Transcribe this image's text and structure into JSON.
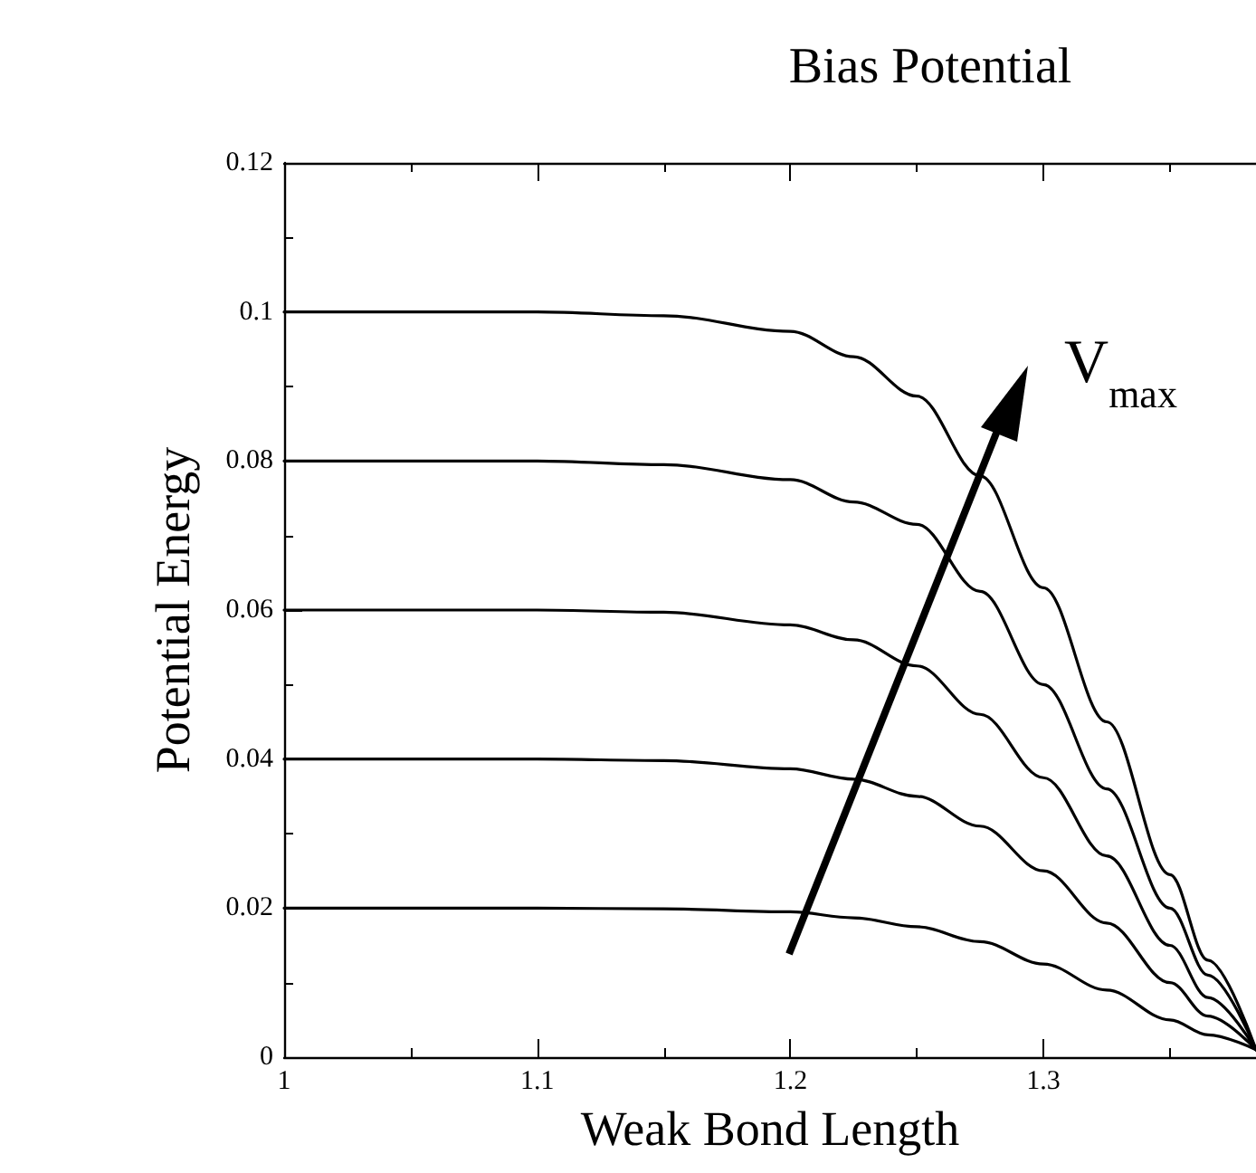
{
  "chart_data": {
    "type": "line",
    "title": "Bias Potential",
    "xlabel": "Weak Bond Length",
    "ylabel": "Potential Energy",
    "annotations": [
      "V$_{max}$"
    ],
    "x": [
      1.0,
      1.1,
      1.15,
      1.2,
      1.225,
      1.25,
      1.275,
      1.3,
      1.325,
      1.35,
      1.365,
      1.384
    ],
    "series": [
      {
        "color": "#000000",
        "values": [
          0.02,
          0.02,
          0.0199,
          0.0195,
          0.0187,
          0.0175,
          0.0155,
          0.0125,
          0.009,
          0.005,
          0.003,
          0.001
        ]
      },
      {
        "color": "#000000",
        "values": [
          0.04,
          0.04,
          0.0398,
          0.0387,
          0.0373,
          0.035,
          0.031,
          0.025,
          0.018,
          0.01,
          0.0055,
          0.001
        ]
      },
      {
        "color": "#000000",
        "values": [
          0.06,
          0.06,
          0.0597,
          0.058,
          0.056,
          0.0525,
          0.046,
          0.0375,
          0.027,
          0.015,
          0.008,
          0.001
        ]
      },
      {
        "color": "#000000",
        "values": [
          0.08,
          0.08,
          0.0795,
          0.0775,
          0.0745,
          0.0715,
          0.0625,
          0.05,
          0.036,
          0.02,
          0.011,
          0.001
        ]
      },
      {
        "color": "#000000",
        "values": [
          0.1,
          0.1,
          0.0995,
          0.0974,
          0.094,
          0.0887,
          0.078,
          0.063,
          0.045,
          0.0245,
          0.013,
          0.001
        ]
      }
    ],
    "xlim": [
      1,
      1.384
    ],
    "xticks": [
      1,
      1.1,
      1.2,
      1.3
    ],
    "ylim": [
      0,
      0.12
    ],
    "yticks": [
      0,
      0.02,
      0.04,
      0.06,
      0.08,
      0.1,
      0.12
    ],
    "grid": false,
    "marker": "none",
    "line_style": "solid"
  }
}
